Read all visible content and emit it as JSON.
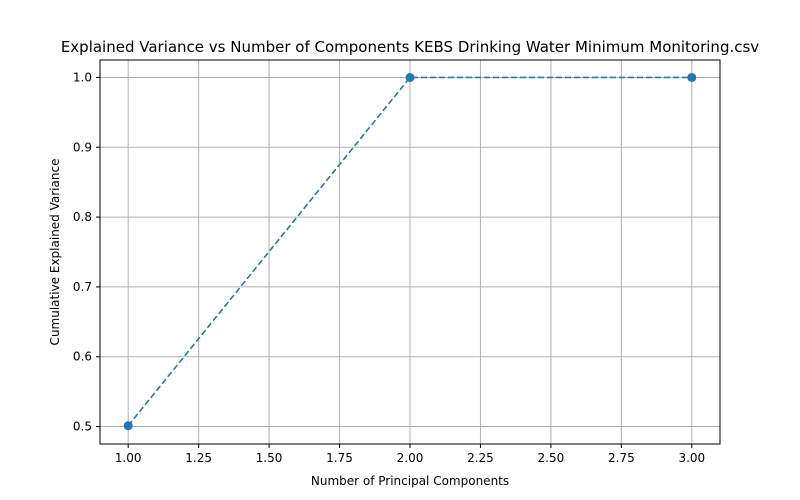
{
  "chart_data": {
    "type": "line",
    "title": "Explained Variance vs Number of Components KEBS Drinking Water Minimum Monitoring.csv",
    "xlabel": "Number of Principal Components",
    "ylabel": "Cumulative Explained Variance",
    "x": [
      1,
      2,
      3
    ],
    "series": [
      {
        "values": [
          0.5012,
          1.0,
          1.0
        ],
        "color": "#1f77b4",
        "linestyle": "dashed",
        "marker": "circle"
      }
    ],
    "xlim": [
      0.9,
      3.1
    ],
    "ylim": [
      0.475,
      1.025
    ],
    "xticks": [
      "1.00",
      "1.25",
      "1.50",
      "1.75",
      "2.00",
      "2.25",
      "2.50",
      "2.75",
      "3.00"
    ],
    "yticks": [
      "0.5",
      "0.6",
      "0.7",
      "0.8",
      "0.9",
      "1.0"
    ],
    "grid": true
  }
}
